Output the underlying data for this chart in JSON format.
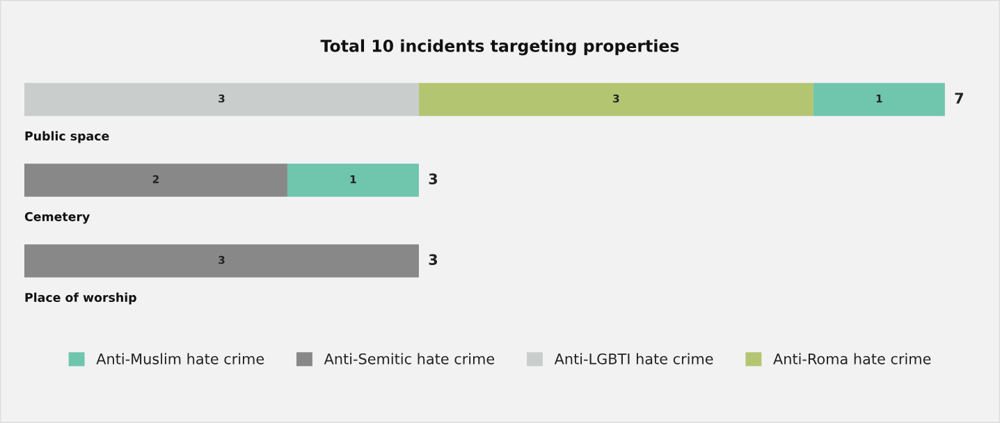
{
  "chart_data": {
    "type": "bar",
    "title": "Total 10 incidents targeting properties",
    "orientation": "horizontal",
    "stacked": true,
    "categories": [
      "Public space",
      "Cemetery",
      "Place of worship"
    ],
    "series": [
      {
        "name": "Anti-Semitic hate crime",
        "color": "#888888",
        "values": [
          null,
          2,
          3
        ]
      },
      {
        "name": "Anti-LGBTI hate crime",
        "color": "#c9cecd",
        "values": [
          3,
          null,
          null
        ]
      },
      {
        "name": "Anti-Roma hate crime",
        "color": "#b4c572",
        "values": [
          3,
          null,
          null
        ]
      },
      {
        "name": "Anti-Muslim hate crime",
        "color": "#70c5ad",
        "values": [
          1,
          1,
          null
        ]
      }
    ],
    "data_labels": true,
    "totals": [
      "7",
      "3",
      "3"
    ],
    "legend": "bottom"
  }
}
